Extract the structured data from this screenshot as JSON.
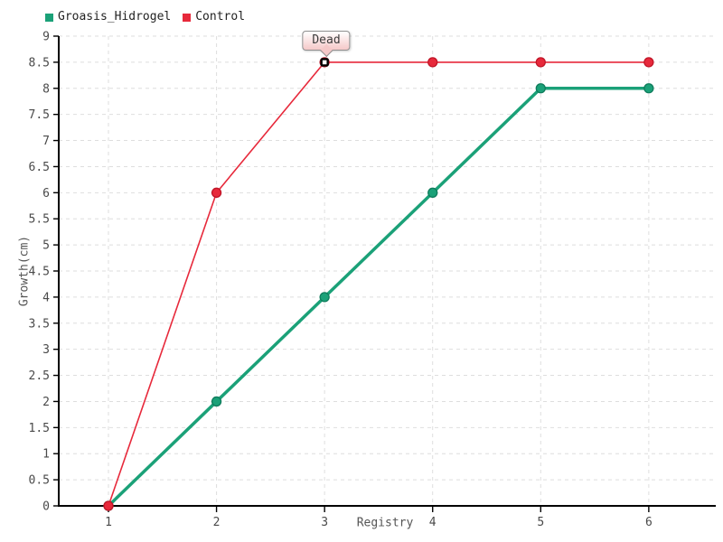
{
  "page": {
    "background": "#ffffff"
  },
  "chart_data": {
    "type": "line",
    "title": "",
    "xlabel": "Registry",
    "ylabel": "Growth(cm)",
    "x": [
      1,
      2,
      3,
      4,
      5,
      6
    ],
    "series": [
      {
        "name": "Groasis_Hidrogel",
        "color": "#1ba178",
        "marker_stroke": "#0f7c5c",
        "line_width": 3.5,
        "marker": "circle",
        "values": [
          0,
          2,
          4,
          6,
          8,
          8
        ]
      },
      {
        "name": "Control",
        "color": "#e7293b",
        "marker_stroke": "#c01527",
        "line_width": 1.6,
        "marker": "circle",
        "values": [
          0,
          6,
          8.5,
          8.5,
          8.5,
          8.5
        ]
      }
    ],
    "xlim": [
      0.54,
      6.62
    ],
    "ylim": [
      0,
      9
    ],
    "x_ticks": [
      "1",
      "2",
      "3",
      "4",
      "5",
      "6"
    ],
    "y_ticks": [
      "0",
      "0.5",
      "1",
      "1.5",
      "2",
      "2.5",
      "3",
      "3.5",
      "4",
      "4.5",
      "5",
      "5.5",
      "6",
      "6.5",
      "7",
      "7.5",
      "8",
      "8.5",
      "9"
    ],
    "grid": true,
    "legend_position": "top-left",
    "annotation": {
      "text": "Dead",
      "x": 3,
      "y": 8.5,
      "bg_top": "#ffffff",
      "bg_bottom": "#f5c8c8",
      "border": "#8f8f8f",
      "highlight_fill": "#ffffff",
      "highlight_stroke": "#000000"
    },
    "style": {
      "axis_color": "#000000",
      "grid_color": "#dedede",
      "tick_text_color": "#4a4a4a"
    }
  }
}
